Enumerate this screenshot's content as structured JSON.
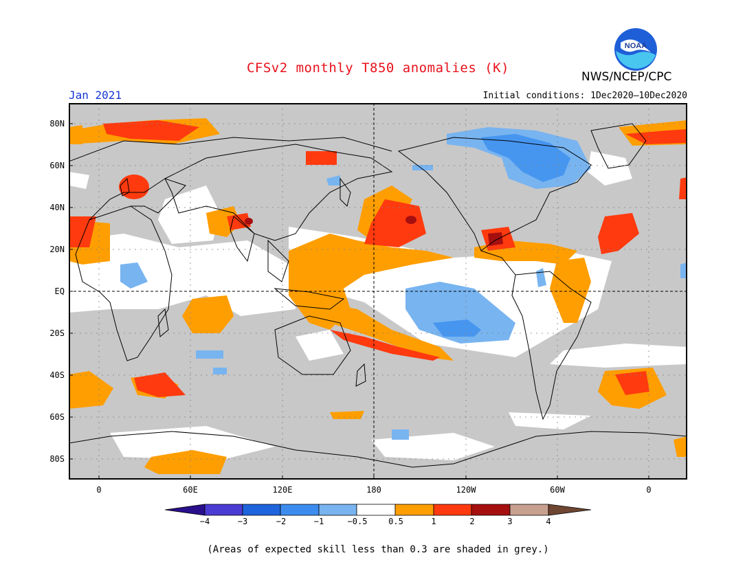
{
  "title": "CFSv2 monthly T850 anomalies (K)",
  "agency": "NWS/NCEP/CPC",
  "valid_month": "Jan 2021",
  "initial_conditions": "Initial conditions: 1Dec2020—10Dec2020",
  "footnote": "(Areas of expected skill less than 0.3 are shaded in grey.)",
  "logo_text": "NOAA",
  "map": {
    "lat_labels": [
      "80N",
      "60N",
      "40N",
      "20N",
      "EQ",
      "20S",
      "40S",
      "60S",
      "80S"
    ],
    "lon_labels": [
      "0",
      "60E",
      "120E",
      "180",
      "120W",
      "60W",
      "0"
    ],
    "colors": {
      "grey_low_skill": "#c8c8c8",
      "neutral": "#ffffff",
      "pos_0_5_1": "#ff9e00",
      "pos_1_2": "#ff3a0f",
      "pos_2_3": "#a50f0f",
      "neg_0_5_1": "#78b4f0",
      "neg_1_2": "#4696f0"
    },
    "warm_regions": [
      {
        "name": "arctic-siberia",
        "level": 1
      },
      {
        "name": "greenland-sea",
        "level": 1
      },
      {
        "name": "europe",
        "level": 2
      },
      {
        "name": "north-pacific",
        "level": 2
      },
      {
        "name": "west-pacific-maritime",
        "level": 1
      },
      {
        "name": "south-pacific-band",
        "level": 2
      },
      {
        "name": "gulf-caribbean",
        "level": 2
      },
      {
        "name": "subtropical-atlantic",
        "level": 2
      },
      {
        "name": "amazon",
        "level": 1
      },
      {
        "name": "south-atlantic",
        "level": 2
      },
      {
        "name": "southern-indian",
        "level": 2
      },
      {
        "name": "antarctic",
        "level": 1
      }
    ],
    "cold_regions": [
      {
        "name": "canada-greenland",
        "level": 2
      },
      {
        "name": "east-tropical-pacific",
        "level": 2
      },
      {
        "name": "africa",
        "level": 1
      }
    ]
  },
  "colorbar": {
    "labels": [
      "−4",
      "−3",
      "−2",
      "−1",
      "−0.5",
      "0.5",
      "1",
      "2",
      "3",
      "4"
    ],
    "colors": [
      "#2a0f8c",
      "#4a3cd2",
      "#1e64dc",
      "#3c8cf0",
      "#78b4f0",
      "#ffffff",
      "#ff9e00",
      "#ff3a0f",
      "#a50f0f",
      "#c8a090",
      "#6e4632"
    ]
  }
}
